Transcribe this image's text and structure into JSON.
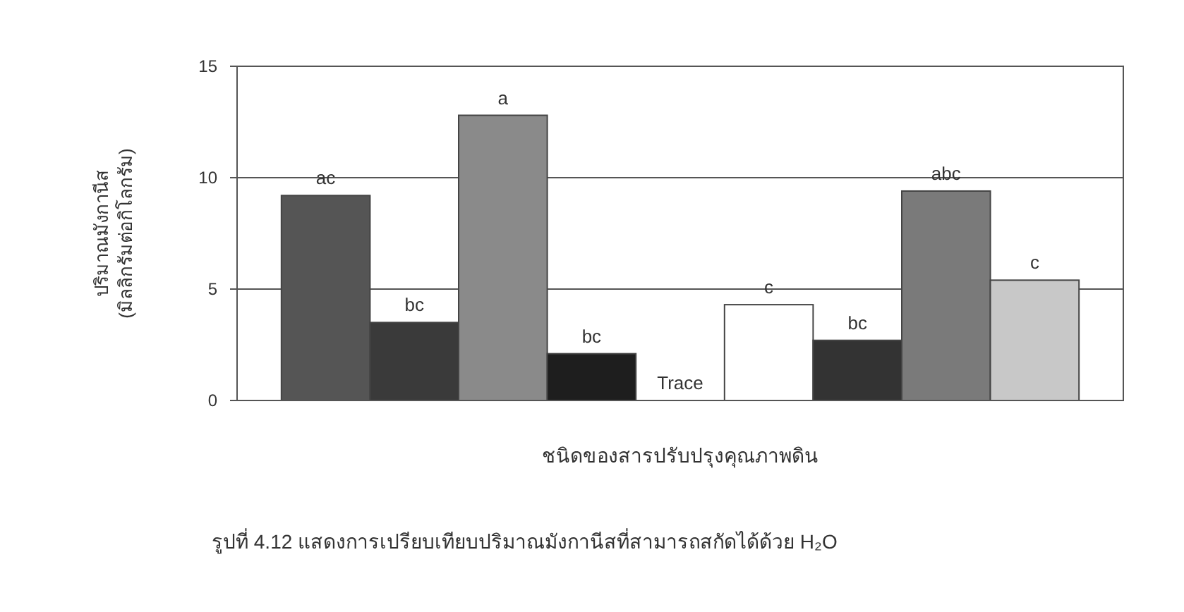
{
  "chart_data": {
    "type": "bar",
    "title": "รูปที่ 4.12 แสดงการเปรียบเทียบปริมาณมังกานีสที่สามารถสกัดได้ด้วย H₂O",
    "xlabel": "ชนิดของสารปรับปรุงคุณภาพดิน",
    "ylabel": "ปริมาณมังกานีส\n(มิลลิกรัมต่อกิโลกรัม)",
    "categories": [
      null,
      null,
      null,
      null,
      null,
      null,
      null,
      null,
      null
    ],
    "values": [
      9.2,
      3.5,
      12.8,
      2.1,
      null,
      4.3,
      2.7,
      9.4,
      5.4
    ],
    "colors": [
      "#555555",
      "#3a3a3a",
      "#8a8a8a",
      "#1e1e1e",
      null,
      "#ffffff",
      "#333333",
      "#7a7a7a",
      "#c8c8c8"
    ],
    "value_labels": [
      "ac",
      "bc",
      "a",
      "bc",
      "Trace",
      "c",
      "bc",
      "abc",
      "c"
    ],
    "ylim": [
      0,
      15
    ],
    "yticks": [
      0,
      5,
      10,
      15
    ],
    "grid": "y"
  }
}
